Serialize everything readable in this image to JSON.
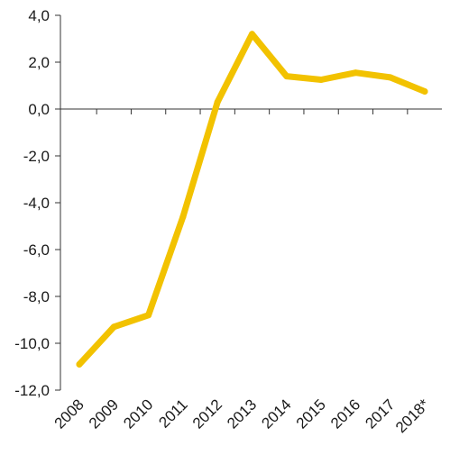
{
  "chart_data": {
    "type": "line",
    "title": "",
    "xlabel": "",
    "ylabel": "",
    "x": [
      "2008",
      "2009",
      "2010",
      "2011",
      "2012",
      "2013",
      "2014",
      "2015",
      "2016",
      "2017",
      "2018*"
    ],
    "series": [
      {
        "values": [
          -10.9,
          -9.3,
          -8.8,
          -4.6,
          0.3,
          3.2,
          1.4,
          1.25,
          1.55,
          1.35,
          0.75
        ],
        "color": "#F2C200"
      }
    ],
    "ylim": [
      -12,
      4
    ],
    "yticks": [
      4,
      2,
      0,
      -2,
      -4,
      -6,
      -8,
      -10,
      -12
    ],
    "ytick_labels": [
      "4,0",
      "2,0",
      "0,0",
      "-2,0",
      "-4,0",
      "-6,0",
      "-8,0",
      "-10,0",
      "-12,0"
    ],
    "grid": false,
    "legend": "none"
  }
}
